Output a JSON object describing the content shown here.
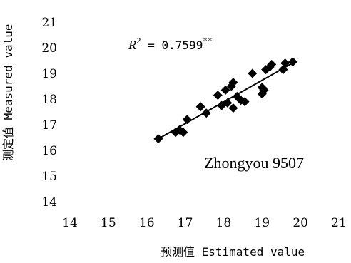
{
  "chart_data": {
    "type": "scatter",
    "xlabel": "预测值 Estimated value",
    "ylabel": "测定值 Measured value",
    "xlim": [
      14,
      21
    ],
    "ylim": [
      14,
      21
    ],
    "x_ticks": [
      "14",
      "15",
      "16",
      "17",
      "18",
      "19",
      "20",
      "21"
    ],
    "y_ticks": [
      "14",
      "15",
      "16",
      "17",
      "18",
      "19",
      "20",
      "21"
    ],
    "annotation": {
      "r_symbol": "R",
      "r_exponent": "2",
      "equals": " = 0.7599",
      "significance": "**"
    },
    "variety_label": "Zhongyou 9507",
    "marker": "diamond",
    "marker_color": "#000000",
    "trendline": {
      "x": [
        16.3,
        19.85
      ],
      "y": [
        16.45,
        19.45
      ]
    },
    "points": [
      {
        "x": 16.3,
        "y": 16.45
      },
      {
        "x": 16.75,
        "y": 16.7
      },
      {
        "x": 16.85,
        "y": 16.8
      },
      {
        "x": 16.95,
        "y": 16.7
      },
      {
        "x": 17.05,
        "y": 17.2
      },
      {
        "x": 17.4,
        "y": 17.7
      },
      {
        "x": 17.55,
        "y": 17.45
      },
      {
        "x": 17.85,
        "y": 18.15
      },
      {
        "x": 17.95,
        "y": 17.75
      },
      {
        "x": 18.05,
        "y": 18.35
      },
      {
        "x": 18.1,
        "y": 17.85
      },
      {
        "x": 18.2,
        "y": 18.5
      },
      {
        "x": 18.25,
        "y": 18.65
      },
      {
        "x": 18.25,
        "y": 17.65
      },
      {
        "x": 18.35,
        "y": 18.1
      },
      {
        "x": 18.45,
        "y": 17.95
      },
      {
        "x": 18.55,
        "y": 17.9
      },
      {
        "x": 18.75,
        "y": 19.0
      },
      {
        "x": 19.0,
        "y": 18.45
      },
      {
        "x": 19.0,
        "y": 18.2
      },
      {
        "x": 19.05,
        "y": 18.35
      },
      {
        "x": 19.1,
        "y": 19.15
      },
      {
        "x": 19.2,
        "y": 19.25
      },
      {
        "x": 19.25,
        "y": 19.35
      },
      {
        "x": 19.55,
        "y": 19.15
      },
      {
        "x": 19.6,
        "y": 19.4
      },
      {
        "x": 19.8,
        "y": 19.45
      }
    ]
  }
}
